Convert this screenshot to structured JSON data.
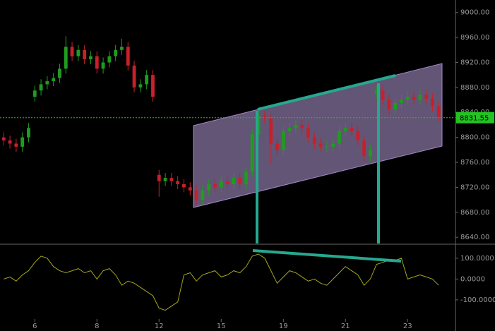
{
  "chart_data": [
    {
      "type": "candlestick",
      "x": [
        0,
        1,
        2,
        3,
        4,
        5,
        6,
        7,
        8,
        9,
        10,
        11,
        12,
        13,
        14,
        15,
        16,
        17,
        18,
        19,
        20,
        21,
        22,
        23,
        24,
        25,
        26,
        27,
        28,
        29,
        30,
        31,
        32,
        33,
        34,
        35,
        36,
        37,
        38,
        39,
        40,
        41,
        42,
        43,
        44,
        45,
        46,
        47,
        48,
        49,
        50,
        51,
        52,
        53,
        54,
        55,
        56,
        57,
        58,
        59,
        60,
        61,
        62,
        63,
        64,
        65,
        66,
        67,
        68,
        69,
        70
      ],
      "open": [
        8800,
        8795,
        8790,
        8785,
        8800,
        8865,
        8875,
        8885,
        8890,
        8895,
        8910,
        8945,
        8930,
        8940,
        8925,
        8930,
        8910,
        8920,
        8930,
        8940,
        8945,
        8915,
        8880,
        8885,
        8900,
        8740,
        8730,
        8735,
        8730,
        8725,
        8720,
        8715,
        8700,
        8715,
        8725,
        8720,
        8730,
        8725,
        8735,
        8725,
        8745,
        8805,
        8835,
        8830,
        8790,
        8780,
        8810,
        8815,
        8820,
        8815,
        8800,
        8790,
        8785,
        8785,
        8790,
        8810,
        8815,
        8810,
        8795,
        8770,
        8870,
        8875,
        8860,
        8845,
        8855,
        8860,
        8865,
        8860,
        8868,
        8862,
        8850
      ],
      "high": [
        8808,
        8803,
        8798,
        8808,
        8823,
        8883,
        8893,
        8898,
        8903,
        8918,
        8962,
        8953,
        8948,
        8948,
        8938,
        8938,
        8928,
        8938,
        8948,
        8958,
        8953,
        8923,
        8893,
        8908,
        8908,
        8748,
        8743,
        8743,
        8738,
        8733,
        8728,
        8723,
        8723,
        8733,
        8733,
        8738,
        8738,
        8743,
        8743,
        8753,
        8813,
        8843,
        8843,
        8838,
        8798,
        8818,
        8823,
        8828,
        8828,
        8823,
        8808,
        8798,
        8793,
        8798,
        8818,
        8823,
        8823,
        8818,
        8803,
        8788,
        8883,
        8883,
        8868,
        8863,
        8868,
        8873,
        8873,
        8876,
        8876,
        8870,
        8858
      ],
      "low": [
        8787,
        8782,
        8777,
        8777,
        8792,
        8857,
        8867,
        8877,
        8882,
        8887,
        8902,
        8922,
        8922,
        8917,
        8917,
        8902,
        8902,
        8912,
        8922,
        8932,
        8907,
        8872,
        8872,
        8877,
        8857,
        8705,
        8722,
        8722,
        8717,
        8712,
        8707,
        8692,
        8692,
        8707,
        8712,
        8712,
        8717,
        8717,
        8717,
        8717,
        8737,
        8797,
        8822,
        8757,
        8772,
        8772,
        8802,
        8807,
        8807,
        8792,
        8782,
        8777,
        8777,
        8777,
        8782,
        8802,
        8802,
        8787,
        8762,
        8762,
        8862,
        8852,
        8837,
        8837,
        8847,
        8852,
        8852,
        8852,
        8854,
        8842,
        8825
      ],
      "close": [
        8795,
        8790,
        8785,
        8800,
        8815,
        8875,
        8885,
        8890,
        8895,
        8910,
        8945,
        8930,
        8940,
        8925,
        8930,
        8910,
        8920,
        8930,
        8940,
        8945,
        8915,
        8880,
        8885,
        8900,
        8865,
        8730,
        8735,
        8730,
        8725,
        8720,
        8715,
        8700,
        8715,
        8725,
        8720,
        8730,
        8725,
        8735,
        8725,
        8745,
        8805,
        8835,
        8830,
        8790,
        8780,
        8810,
        8815,
        8820,
        8815,
        8800,
        8790,
        8785,
        8785,
        8790,
        8810,
        8815,
        8810,
        8795,
        8770,
        8780,
        8875,
        8860,
        8845,
        8855,
        8860,
        8865,
        8860,
        8868,
        8862,
        8850,
        8832
      ],
      "up_color": "#1f9c1f",
      "down_color": "#c8202a",
      "last_price": 8831.55,
      "last_price_color": "#22c322",
      "xlim": [
        -0.6,
        72.7
      ],
      "ylim": [
        8630,
        9020
      ],
      "yticks": [
        {
          "value": 8640,
          "label": "8640.00"
        },
        {
          "value": 8680,
          "label": "8680.00"
        },
        {
          "value": 8720,
          "label": "8720.00"
        },
        {
          "value": 8760,
          "label": "8760.00"
        },
        {
          "value": 8800,
          "label": "8800.00"
        },
        {
          "value": 8840,
          "label": "8840.00"
        },
        {
          "value": 8880,
          "label": "8880.00"
        },
        {
          "value": 8920,
          "label": "8920.00"
        },
        {
          "value": 8960,
          "label": "8960.00"
        },
        {
          "value": 9000,
          "label": "9000.00"
        }
      ]
    },
    {
      "type": "line",
      "x": [
        0,
        1,
        2,
        3,
        4,
        5,
        6,
        7,
        8,
        9,
        10,
        11,
        12,
        13,
        14,
        15,
        16,
        17,
        18,
        19,
        20,
        21,
        22,
        23,
        24,
        25,
        26,
        27,
        28,
        29,
        30,
        31,
        32,
        33,
        34,
        35,
        36,
        37,
        38,
        39,
        40,
        41,
        42,
        43,
        44,
        45,
        46,
        47,
        48,
        49,
        50,
        51,
        52,
        53,
        54,
        55,
        56,
        57,
        58,
        59,
        60,
        61,
        62,
        63,
        64,
        65,
        66,
        67,
        68,
        69,
        70
      ],
      "values": [
        0,
        10,
        -10,
        20,
        40,
        80,
        110,
        100,
        60,
        40,
        30,
        40,
        50,
        30,
        40,
        0,
        40,
        50,
        20,
        -30,
        -10,
        -20,
        -40,
        -60,
        -80,
        -140,
        -150,
        -130,
        -110,
        20,
        30,
        -10,
        20,
        30,
        40,
        10,
        20,
        40,
        30,
        60,
        110,
        120,
        100,
        40,
        -20,
        10,
        40,
        30,
        10,
        -10,
        0,
        -20,
        -30,
        0,
        30,
        60,
        40,
        20,
        -30,
        0,
        70,
        80,
        90,
        90,
        100,
        0,
        10,
        20,
        10,
        0,
        -30
      ],
      "color": "#a5a51e",
      "xlim": [
        -0.6,
        72.7
      ],
      "ylim": [
        -192,
        164
      ],
      "yticks": [
        {
          "value": 100,
          "label": "100.0000"
        },
        {
          "value": 0,
          "label": "0.0000"
        },
        {
          "value": -100,
          "label": "-100.0000"
        }
      ],
      "xticks": [
        {
          "value": 5,
          "label": "6"
        },
        {
          "value": 15,
          "label": "8"
        },
        {
          "value": 25,
          "label": "12"
        },
        {
          "value": 35,
          "label": "15"
        },
        {
          "value": 45,
          "label": "19"
        },
        {
          "value": 55,
          "label": "21"
        },
        {
          "value": 65,
          "label": "23"
        }
      ]
    }
  ]
}
